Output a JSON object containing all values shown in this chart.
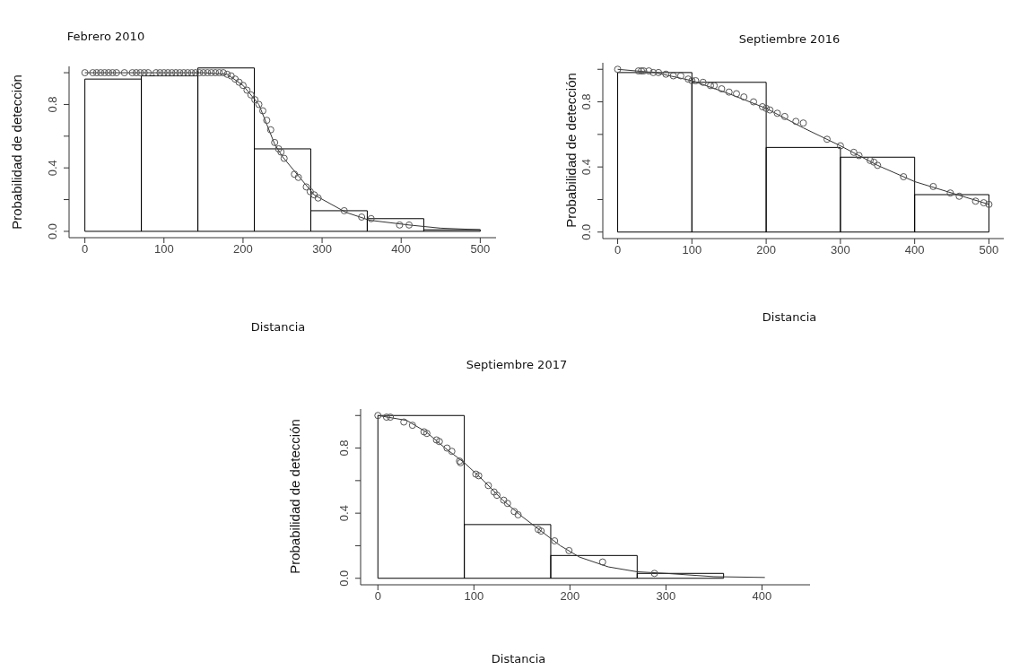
{
  "chart_data": [
    {
      "type": "histogram",
      "title": "Febrero 2010",
      "xlabel": "Distancia",
      "ylabel": "Probabilidad de detección",
      "xlim": [
        -20,
        520
      ],
      "ylim": [
        -0.04,
        1.04
      ],
      "xticks": [
        0,
        100,
        200,
        300,
        400,
        500
      ],
      "yticks": [
        {
          "value": 0,
          "label": "0.0"
        },
        {
          "value": 0.2,
          "label": null
        },
        {
          "value": 0.4,
          "label": "0.4"
        },
        {
          "value": 0.6,
          "label": null
        },
        {
          "value": 0.8,
          "label": "0.8"
        },
        {
          "value": 1,
          "label": null
        }
      ],
      "bins": [
        0,
        71.4,
        142.9,
        214.3,
        285.7,
        357.1,
        428.6,
        500
      ],
      "values": [
        0.96,
        0.98,
        1.03,
        0.52,
        0.13,
        0.08,
        0.01
      ],
      "color": "#000000",
      "series": [
        {
          "type": "line",
          "color": "#333333",
          "x": [
            0,
            100,
            150,
            180,
            200,
            220,
            240,
            250,
            270,
            290,
            330,
            360,
            410,
            450,
            500
          ],
          "values": [
            1,
            1,
            1,
            0.99,
            0.92,
            0.8,
            0.55,
            0.47,
            0.35,
            0.23,
            0.12,
            0.07,
            0.04,
            0.02,
            0.01
          ]
        },
        {
          "type": "scatter",
          "color": "#555555",
          "marker": "circle",
          "x": [
            0,
            10,
            15,
            20,
            25,
            30,
            35,
            40,
            50,
            60,
            65,
            70,
            75,
            80,
            90,
            95,
            100,
            105,
            110,
            115,
            120,
            125,
            130,
            135,
            140,
            145,
            150,
            155,
            160,
            165,
            170,
            175,
            180,
            185,
            190,
            195,
            200,
            205,
            210,
            215,
            220,
            225,
            230,
            235,
            240,
            245,
            248,
            252,
            265,
            270,
            280,
            285,
            290,
            295,
            328,
            350,
            362,
            398,
            410
          ],
          "values": [
            1,
            1,
            1,
            1,
            1,
            1,
            1,
            1,
            1,
            1,
            1,
            1,
            1,
            1,
            1,
            1,
            1,
            1,
            1,
            1,
            1,
            1,
            1,
            1,
            1,
            1,
            1,
            1,
            1,
            1,
            1,
            1,
            0.99,
            0.98,
            0.96,
            0.94,
            0.92,
            0.89,
            0.86,
            0.83,
            0.8,
            0.76,
            0.7,
            0.64,
            0.56,
            0.52,
            0.5,
            0.46,
            0.36,
            0.34,
            0.28,
            0.25,
            0.23,
            0.21,
            0.13,
            0.09,
            0.08,
            0.04,
            0.04
          ]
        }
      ]
    },
    {
      "type": "histogram",
      "title": "Septiembre 2016",
      "xlabel": "Distancia",
      "ylabel": "Probabilidad de detección",
      "xlim": [
        -20,
        520
      ],
      "ylim": [
        -0.04,
        1.04
      ],
      "xticks": [
        0,
        100,
        200,
        300,
        400,
        500
      ],
      "yticks": [
        {
          "value": 0,
          "label": "0.0"
        },
        {
          "value": 0.2,
          "label": null
        },
        {
          "value": 0.4,
          "label": "0.4"
        },
        {
          "value": 0.6,
          "label": null
        },
        {
          "value": 0.8,
          "label": "0.8"
        },
        {
          "value": 1,
          "label": null
        }
      ],
      "bins": [
        0,
        100,
        200,
        300,
        400,
        500
      ],
      "values": [
        0.98,
        0.92,
        0.52,
        0.46,
        0.23
      ],
      "color": "#000000",
      "series": [
        {
          "type": "line",
          "color": "#333333",
          "x": [
            0,
            50,
            100,
            150,
            200,
            250,
            300,
            350,
            400,
            450,
            500
          ],
          "values": [
            1,
            0.98,
            0.93,
            0.85,
            0.76,
            0.64,
            0.53,
            0.41,
            0.31,
            0.24,
            0.17
          ]
        },
        {
          "type": "scatter",
          "color": "#555555",
          "marker": "circle",
          "x": [
            0,
            28,
            32,
            35,
            42,
            48,
            55,
            65,
            75,
            85,
            95,
            100,
            105,
            115,
            125,
            130,
            140,
            150,
            160,
            170,
            183,
            195,
            200,
            205,
            215,
            225,
            240,
            250,
            282,
            300,
            318,
            325,
            340,
            345,
            350,
            385,
            425,
            448,
            460,
            482,
            493,
            500
          ],
          "values": [
            1,
            0.99,
            0.99,
            0.99,
            0.99,
            0.98,
            0.98,
            0.97,
            0.96,
            0.96,
            0.94,
            0.93,
            0.93,
            0.92,
            0.9,
            0.9,
            0.88,
            0.86,
            0.85,
            0.83,
            0.8,
            0.77,
            0.76,
            0.75,
            0.73,
            0.71,
            0.68,
            0.67,
            0.57,
            0.53,
            0.49,
            0.47,
            0.44,
            0.43,
            0.41,
            0.34,
            0.28,
            0.24,
            0.22,
            0.19,
            0.18,
            0.17
          ]
        }
      ]
    },
    {
      "type": "histogram",
      "title": "Septiembre 2017",
      "xlabel": "Distancia",
      "ylabel": "Probabilidad de detección",
      "xlim": [
        -18,
        450
      ],
      "ylim": [
        -0.04,
        1.04
      ],
      "xticks": [
        0,
        100,
        200,
        300,
        400
      ],
      "yticks": [
        {
          "value": 0,
          "label": "0.0"
        },
        {
          "value": 0.2,
          "label": null
        },
        {
          "value": 0.4,
          "label": "0.4"
        },
        {
          "value": 0.6,
          "label": null
        },
        {
          "value": 0.8,
          "label": "0.8"
        },
        {
          "value": 1,
          "label": null
        }
      ],
      "bins": [
        0,
        90,
        180,
        270,
        360
      ],
      "values": [
        1,
        0.33,
        0.14,
        0.03
      ],
      "color": "#000000",
      "series": [
        {
          "type": "line",
          "color": "#333333",
          "x": [
            0,
            30,
            50,
            70,
            90,
            110,
            130,
            150,
            170,
            190,
            210,
            240,
            270,
            300,
            350,
            403
          ],
          "values": [
            1,
            0.97,
            0.9,
            0.8,
            0.71,
            0.6,
            0.48,
            0.38,
            0.29,
            0.2,
            0.13,
            0.07,
            0.04,
            0.03,
            0.01,
            0.005
          ]
        },
        {
          "type": "scatter",
          "color": "#555555",
          "marker": "circle",
          "x": [
            0,
            9,
            13,
            27,
            36,
            48,
            51,
            61,
            64,
            72,
            77,
            85,
            86,
            102,
            105,
            115,
            121,
            124,
            131,
            135,
            142,
            146,
            167,
            170,
            184,
            199,
            234,
            288
          ],
          "values": [
            1,
            0.99,
            0.99,
            0.96,
            0.94,
            0.9,
            0.89,
            0.85,
            0.84,
            0.8,
            0.78,
            0.72,
            0.71,
            0.64,
            0.63,
            0.57,
            0.53,
            0.51,
            0.48,
            0.46,
            0.41,
            0.39,
            0.3,
            0.29,
            0.23,
            0.17,
            0.1,
            0.03
          ]
        }
      ]
    }
  ]
}
